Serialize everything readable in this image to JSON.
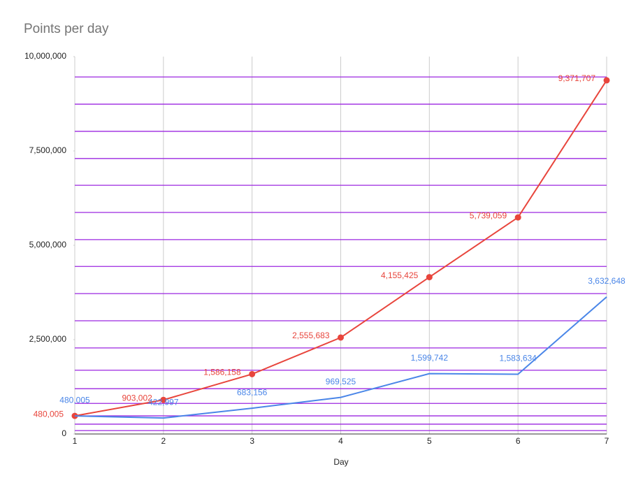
{
  "chart_data": {
    "type": "line",
    "title": "Points per day",
    "x_label": "Day",
    "x": [
      1,
      2,
      3,
      4,
      5,
      6,
      7
    ],
    "xlim": [
      1,
      7
    ],
    "xticks": [
      1,
      2,
      3,
      4,
      5,
      6,
      7
    ],
    "ylim": [
      0,
      10000000
    ],
    "yticks": [
      0,
      {
        "value": 2500000,
        "label": "2,500,000"
      },
      {
        "value": 5000000,
        "label": "5,000,000"
      },
      {
        "value": 7500000,
        "label": "7,500,000"
      },
      {
        "value": 10000000,
        "label": "10,000,000"
      }
    ],
    "grid": true,
    "minor_grid": {
      "color": "#9c27e0",
      "values": [
        9460000,
        8740000,
        8020000,
        7300000,
        6590000,
        5870000,
        5150000,
        4440000,
        3720000,
        3000000,
        2280000,
        1690000,
        1200000,
        810000,
        480000,
        260000,
        90000
      ]
    },
    "series": [
      {
        "color": "#e8453c",
        "markers": true,
        "values": [
          480005,
          903002,
          1586158,
          2555683,
          4155425,
          5739059,
          9371707
        ],
        "value_labels": [
          "480,005",
          "903,002",
          "1,586,158",
          "2,555,683",
          "4,155,425",
          "5,739,059",
          "9,371,707"
        ]
      },
      {
        "color": "#4a86e8",
        "markers": false,
        "values": [
          480005,
          422997,
          683156,
          969525,
          1599742,
          1583634,
          3632648
        ],
        "value_labels": [
          "480,005",
          "422,997",
          "683,156",
          "969,525",
          "1,599,742",
          "1,583,634",
          "3,632,648"
        ]
      }
    ]
  }
}
